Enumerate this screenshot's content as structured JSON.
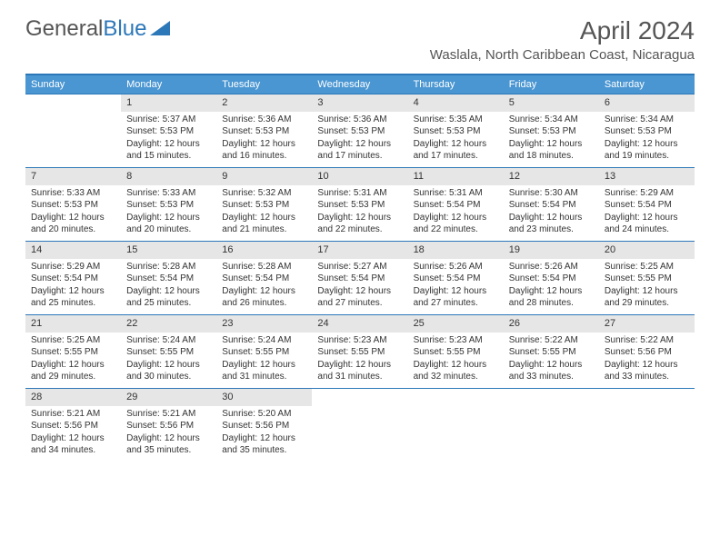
{
  "logo": {
    "text1": "General",
    "text2": "Blue"
  },
  "title": "April 2024",
  "location": "Waslala, North Caribbean Coast, Nicaragua",
  "colors": {
    "header_bar": "#4a96d2",
    "border": "#2c77b8",
    "daynum_bg": "#e6e6e6",
    "text": "#333333",
    "title_text": "#555555"
  },
  "weekdays": [
    "Sunday",
    "Monday",
    "Tuesday",
    "Wednesday",
    "Thursday",
    "Friday",
    "Saturday"
  ],
  "weeks": [
    [
      null,
      {
        "n": "1",
        "sr": "Sunrise: 5:37 AM",
        "ss": "Sunset: 5:53 PM",
        "d1": "Daylight: 12 hours",
        "d2": "and 15 minutes."
      },
      {
        "n": "2",
        "sr": "Sunrise: 5:36 AM",
        "ss": "Sunset: 5:53 PM",
        "d1": "Daylight: 12 hours",
        "d2": "and 16 minutes."
      },
      {
        "n": "3",
        "sr": "Sunrise: 5:36 AM",
        "ss": "Sunset: 5:53 PM",
        "d1": "Daylight: 12 hours",
        "d2": "and 17 minutes."
      },
      {
        "n": "4",
        "sr": "Sunrise: 5:35 AM",
        "ss": "Sunset: 5:53 PM",
        "d1": "Daylight: 12 hours",
        "d2": "and 17 minutes."
      },
      {
        "n": "5",
        "sr": "Sunrise: 5:34 AM",
        "ss": "Sunset: 5:53 PM",
        "d1": "Daylight: 12 hours",
        "d2": "and 18 minutes."
      },
      {
        "n": "6",
        "sr": "Sunrise: 5:34 AM",
        "ss": "Sunset: 5:53 PM",
        "d1": "Daylight: 12 hours",
        "d2": "and 19 minutes."
      }
    ],
    [
      {
        "n": "7",
        "sr": "Sunrise: 5:33 AM",
        "ss": "Sunset: 5:53 PM",
        "d1": "Daylight: 12 hours",
        "d2": "and 20 minutes."
      },
      {
        "n": "8",
        "sr": "Sunrise: 5:33 AM",
        "ss": "Sunset: 5:53 PM",
        "d1": "Daylight: 12 hours",
        "d2": "and 20 minutes."
      },
      {
        "n": "9",
        "sr": "Sunrise: 5:32 AM",
        "ss": "Sunset: 5:53 PM",
        "d1": "Daylight: 12 hours",
        "d2": "and 21 minutes."
      },
      {
        "n": "10",
        "sr": "Sunrise: 5:31 AM",
        "ss": "Sunset: 5:53 PM",
        "d1": "Daylight: 12 hours",
        "d2": "and 22 minutes."
      },
      {
        "n": "11",
        "sr": "Sunrise: 5:31 AM",
        "ss": "Sunset: 5:54 PM",
        "d1": "Daylight: 12 hours",
        "d2": "and 22 minutes."
      },
      {
        "n": "12",
        "sr": "Sunrise: 5:30 AM",
        "ss": "Sunset: 5:54 PM",
        "d1": "Daylight: 12 hours",
        "d2": "and 23 minutes."
      },
      {
        "n": "13",
        "sr": "Sunrise: 5:29 AM",
        "ss": "Sunset: 5:54 PM",
        "d1": "Daylight: 12 hours",
        "d2": "and 24 minutes."
      }
    ],
    [
      {
        "n": "14",
        "sr": "Sunrise: 5:29 AM",
        "ss": "Sunset: 5:54 PM",
        "d1": "Daylight: 12 hours",
        "d2": "and 25 minutes."
      },
      {
        "n": "15",
        "sr": "Sunrise: 5:28 AM",
        "ss": "Sunset: 5:54 PM",
        "d1": "Daylight: 12 hours",
        "d2": "and 25 minutes."
      },
      {
        "n": "16",
        "sr": "Sunrise: 5:28 AM",
        "ss": "Sunset: 5:54 PM",
        "d1": "Daylight: 12 hours",
        "d2": "and 26 minutes."
      },
      {
        "n": "17",
        "sr": "Sunrise: 5:27 AM",
        "ss": "Sunset: 5:54 PM",
        "d1": "Daylight: 12 hours",
        "d2": "and 27 minutes."
      },
      {
        "n": "18",
        "sr": "Sunrise: 5:26 AM",
        "ss": "Sunset: 5:54 PM",
        "d1": "Daylight: 12 hours",
        "d2": "and 27 minutes."
      },
      {
        "n": "19",
        "sr": "Sunrise: 5:26 AM",
        "ss": "Sunset: 5:54 PM",
        "d1": "Daylight: 12 hours",
        "d2": "and 28 minutes."
      },
      {
        "n": "20",
        "sr": "Sunrise: 5:25 AM",
        "ss": "Sunset: 5:55 PM",
        "d1": "Daylight: 12 hours",
        "d2": "and 29 minutes."
      }
    ],
    [
      {
        "n": "21",
        "sr": "Sunrise: 5:25 AM",
        "ss": "Sunset: 5:55 PM",
        "d1": "Daylight: 12 hours",
        "d2": "and 29 minutes."
      },
      {
        "n": "22",
        "sr": "Sunrise: 5:24 AM",
        "ss": "Sunset: 5:55 PM",
        "d1": "Daylight: 12 hours",
        "d2": "and 30 minutes."
      },
      {
        "n": "23",
        "sr": "Sunrise: 5:24 AM",
        "ss": "Sunset: 5:55 PM",
        "d1": "Daylight: 12 hours",
        "d2": "and 31 minutes."
      },
      {
        "n": "24",
        "sr": "Sunrise: 5:23 AM",
        "ss": "Sunset: 5:55 PM",
        "d1": "Daylight: 12 hours",
        "d2": "and 31 minutes."
      },
      {
        "n": "25",
        "sr": "Sunrise: 5:23 AM",
        "ss": "Sunset: 5:55 PM",
        "d1": "Daylight: 12 hours",
        "d2": "and 32 minutes."
      },
      {
        "n": "26",
        "sr": "Sunrise: 5:22 AM",
        "ss": "Sunset: 5:55 PM",
        "d1": "Daylight: 12 hours",
        "d2": "and 33 minutes."
      },
      {
        "n": "27",
        "sr": "Sunrise: 5:22 AM",
        "ss": "Sunset: 5:56 PM",
        "d1": "Daylight: 12 hours",
        "d2": "and 33 minutes."
      }
    ],
    [
      {
        "n": "28",
        "sr": "Sunrise: 5:21 AM",
        "ss": "Sunset: 5:56 PM",
        "d1": "Daylight: 12 hours",
        "d2": "and 34 minutes."
      },
      {
        "n": "29",
        "sr": "Sunrise: 5:21 AM",
        "ss": "Sunset: 5:56 PM",
        "d1": "Daylight: 12 hours",
        "d2": "and 35 minutes."
      },
      {
        "n": "30",
        "sr": "Sunrise: 5:20 AM",
        "ss": "Sunset: 5:56 PM",
        "d1": "Daylight: 12 hours",
        "d2": "and 35 minutes."
      },
      null,
      null,
      null,
      null
    ]
  ]
}
